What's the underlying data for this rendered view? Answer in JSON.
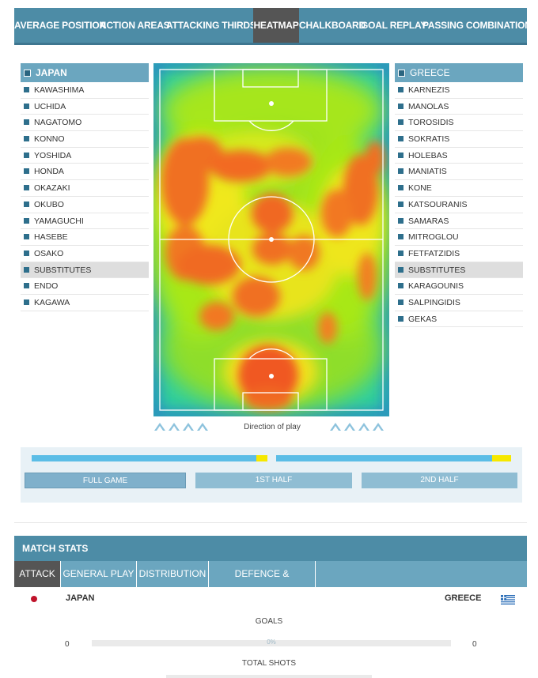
{
  "nav": {
    "tabs": [
      {
        "label": "AVERAGE POSITION"
      },
      {
        "label": "ACTION AREAS"
      },
      {
        "label": "ATTACKING THIRDS"
      },
      {
        "label": "HEATMAP",
        "active": true
      },
      {
        "label": "CHALKBOARD"
      },
      {
        "label": "GOAL REPLAY"
      },
      {
        "label": "PASSING COMBINATION"
      }
    ]
  },
  "japan": {
    "name": "JAPAN",
    "players": [
      "KAWASHIMA",
      "UCHIDA",
      "NAGATOMO",
      "KONNO",
      "YOSHIDA",
      "HONDA",
      "OKAZAKI",
      "OKUBO",
      "YAMAGUCHI",
      "HASEBE",
      "OSAKO"
    ],
    "substitutes_label": "SUBSTITUTES",
    "substitutes": [
      "ENDO",
      "KAGAWA"
    ]
  },
  "greece": {
    "name": "GREECE",
    "players": [
      "KARNEZIS",
      "MANOLAS",
      "TOROSIDIS",
      "SOKRATIS",
      "HOLEBAS",
      "MANIATIS",
      "KONE",
      "KATSOURANIS",
      "SAMARAS",
      "MITROGLOU",
      "FETFATZIDIS"
    ],
    "substitutes_label": "SUBSTITUTES",
    "substitutes": [
      "KARAGOUNIS",
      "SALPINGIDIS",
      "GEKAS"
    ]
  },
  "pitch": {
    "direction_label": "Direction of play"
  },
  "time": {
    "buttons": [
      {
        "label": "FULL GAME",
        "active": true
      },
      {
        "label": "1ST HALF"
      },
      {
        "label": "2ND HALF"
      }
    ]
  },
  "stats": {
    "header": "MATCH STATS",
    "tabs": [
      {
        "label": "ATTACK",
        "active": true
      },
      {
        "label": "GENERAL PLAY"
      },
      {
        "label": "DISTRIBUTION"
      },
      {
        "label": "DEFENCE & DISCIPLINE"
      }
    ],
    "home_team": "JAPAN",
    "away_team": "GREECE",
    "goals_label": "GOALS",
    "goals_home": "0",
    "goals_away": "0",
    "goals_pct": "0%",
    "shots_label": "TOTAL SHOTS"
  },
  "colors": {
    "nav_bg": "#4d8ca6",
    "active_tab": "#555555",
    "team_header": "#6ba6bf",
    "progress_blue": "#5bbde6",
    "progress_yellow": "#f6e800"
  }
}
